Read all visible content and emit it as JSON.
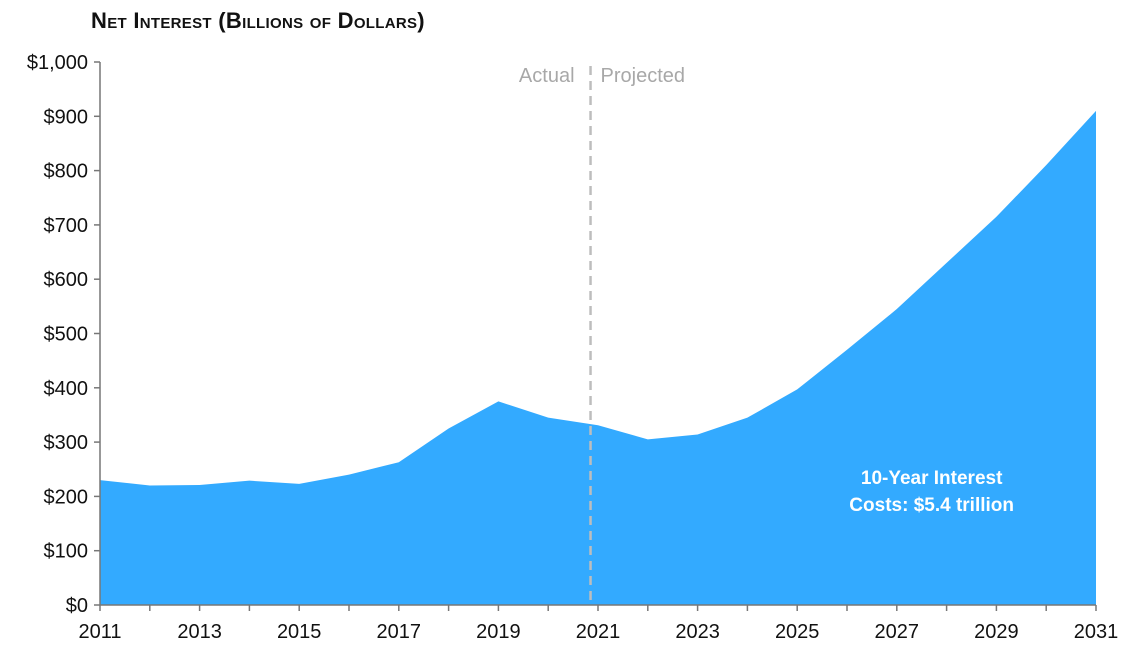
{
  "chart_data": {
    "type": "area",
    "title": "Net Interest (Billions of Dollars)",
    "xlabel": "",
    "ylabel": "",
    "x": [
      2011,
      2012,
      2013,
      2014,
      2015,
      2016,
      2017,
      2018,
      2019,
      2020,
      2021,
      2022,
      2023,
      2024,
      2025,
      2026,
      2027,
      2028,
      2029,
      2030,
      2031
    ],
    "series": [
      {
        "values": [
          230,
          220,
          221,
          229,
          223,
          240,
          263,
          325,
          375,
          345,
          331,
          305,
          314,
          345,
          397,
          470,
          545,
          630,
          715,
          810,
          910
        ]
      }
    ],
    "xlim": [
      2011,
      2031
    ],
    "ylim": [
      0,
      1000
    ],
    "y_ticks": [
      0,
      100,
      200,
      300,
      400,
      500,
      600,
      700,
      800,
      900,
      1000
    ],
    "y_tick_labels": [
      "$0",
      "$100",
      "$200",
      "$300",
      "$400",
      "$500",
      "$600",
      "$700",
      "$800",
      "$900",
      "$1,000"
    ],
    "x_ticks": [
      2011,
      2013,
      2015,
      2017,
      2019,
      2021,
      2023,
      2025,
      2027,
      2029,
      2031
    ],
    "x_tick_labels": [
      "2011",
      "2013",
      "2015",
      "2017",
      "2019",
      "2021",
      "2023",
      "2025",
      "2027",
      "2029",
      "2031"
    ],
    "divider_x": 2020.85,
    "divider_labels": {
      "left": "Actual",
      "right": "Projected"
    },
    "annotation": {
      "x": 2027.7,
      "line1": "10-Year Interest",
      "line2": "Costs: $5.4 trillion"
    },
    "grid": false,
    "legend": "none",
    "colors": {
      "area": "#33aaff",
      "axis": "#777777",
      "divider": "#bdbdbd"
    }
  }
}
